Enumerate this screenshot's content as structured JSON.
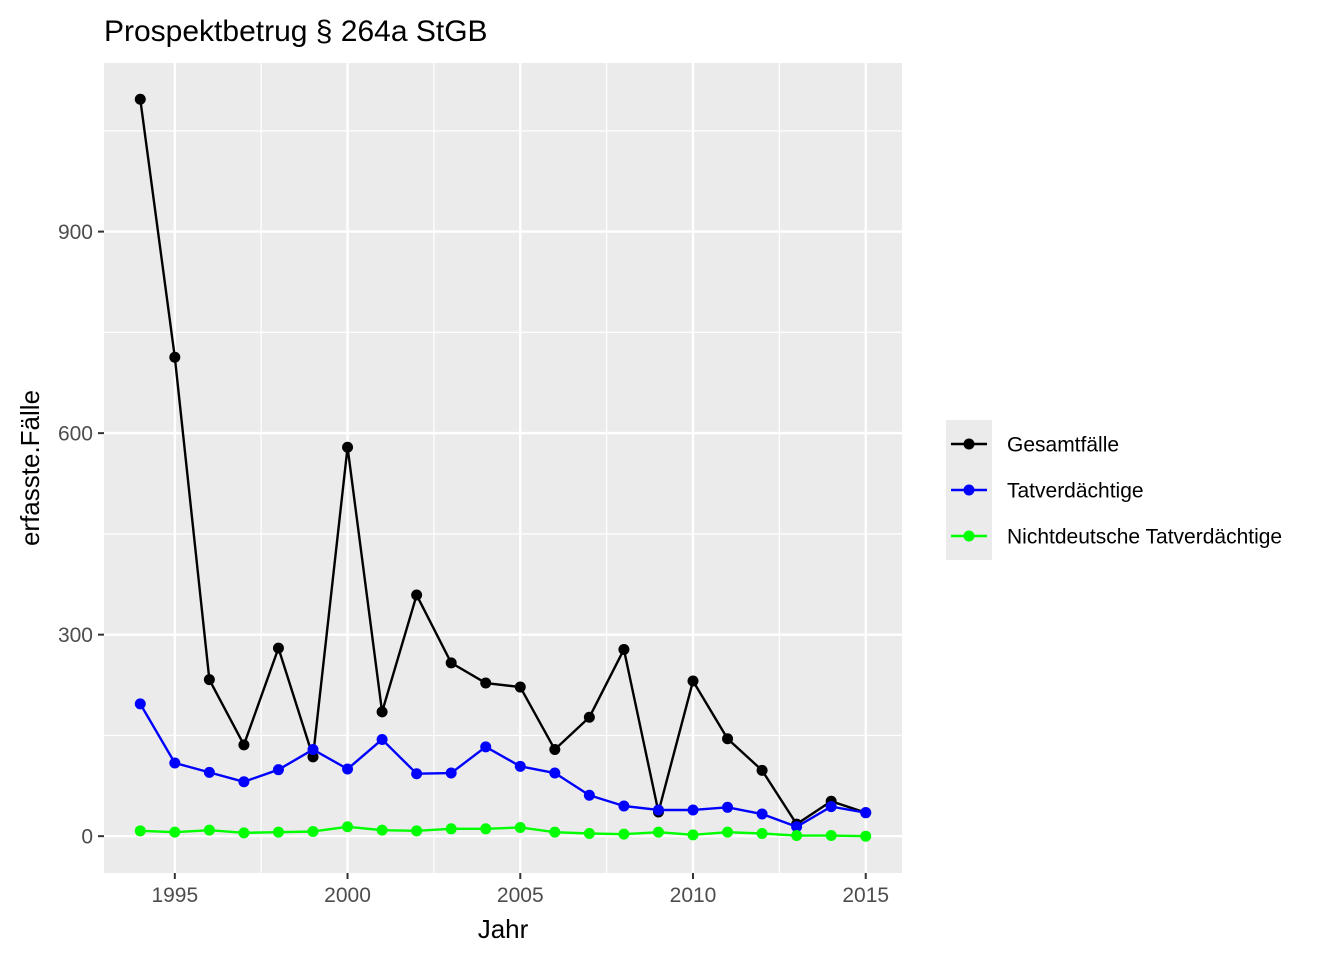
{
  "chart_data": {
    "type": "line",
    "title": "Prospektbetrug § 264a StGB",
    "xlabel": "Jahr",
    "ylabel": "erfasste.Fälle",
    "x": [
      1994,
      1995,
      1996,
      1997,
      1998,
      1999,
      2000,
      2001,
      2002,
      2003,
      2004,
      2005,
      2006,
      2007,
      2008,
      2009,
      2010,
      2011,
      2012,
      2013,
      2014,
      2015
    ],
    "x_ticks": [
      1995,
      2000,
      2005,
      2010,
      2015
    ],
    "y_ticks": [
      0,
      300,
      600,
      900
    ],
    "xlim": [
      1992.95,
      2016.05
    ],
    "ylim": [
      -54.8,
      1151
    ],
    "grid": true,
    "legend_position": "right",
    "series": [
      {
        "name": "Gesamtfälle",
        "color": "#000000",
        "values": [
          1097,
          713,
          233,
          136,
          280,
          118,
          579,
          185,
          359,
          258,
          228,
          222,
          129,
          177,
          278,
          36,
          231,
          145,
          98,
          18,
          52,
          35
        ]
      },
      {
        "name": "Tatverdächtige",
        "color": "#0000ff",
        "values": [
          197,
          109,
          95,
          81,
          99,
          129,
          100,
          144,
          93,
          94,
          133,
          104,
          94,
          61,
          45,
          39,
          39,
          43,
          33,
          14,
          44,
          35
        ]
      },
      {
        "name": "Nichtdeutsche Tatverdächtige",
        "color": "#00ff00",
        "values": [
          8,
          6,
          9,
          5,
          6,
          7,
          14,
          9,
          8,
          11,
          11,
          13,
          6,
          4,
          3,
          6,
          2,
          6,
          4,
          1,
          1,
          0
        ]
      }
    ]
  }
}
